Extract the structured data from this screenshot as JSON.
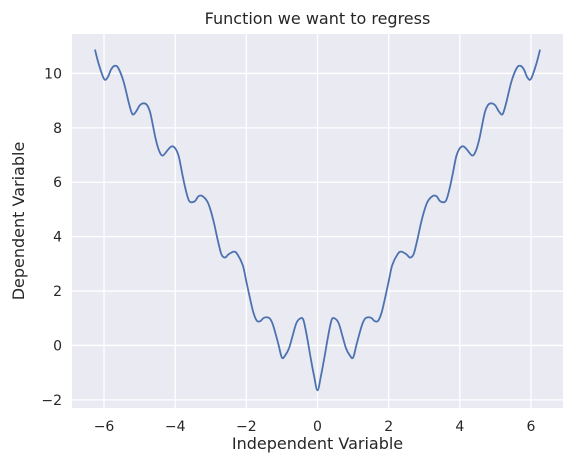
{
  "chart_data": {
    "type": "line",
    "title": "Function we want to regress",
    "xlabel": "Independent Variable",
    "ylabel": "Dependent Variable",
    "xlim": [
      -6.9,
      6.9
    ],
    "ylim": [
      -2.3,
      11.45
    ],
    "xticks": [
      -6,
      -4,
      -2,
      0,
      2,
      4,
      6
    ],
    "xtick_labels": [
      "−6",
      "−4",
      "−2",
      "0",
      "2",
      "4",
      "6"
    ],
    "yticks": [
      -2,
      0,
      2,
      4,
      6,
      8,
      10
    ],
    "ytick_labels": [
      "−2",
      "0",
      "2",
      "4",
      "6",
      "8",
      "10"
    ],
    "grid": true,
    "series": [
      {
        "x": [
          -6.25,
          -6.15,
          -6.0,
          -5.9,
          -5.8,
          -5.7,
          -5.6,
          -5.45,
          -5.3,
          -5.2,
          -5.1,
          -5.0,
          -4.9,
          -4.8,
          -4.7,
          -4.55,
          -4.45,
          -4.35,
          -4.2,
          -4.1,
          -4.0,
          -3.9,
          -3.8,
          -3.7,
          -3.6,
          -3.45,
          -3.35,
          -3.25,
          -3.1,
          -3.0,
          -2.9,
          -2.8,
          -2.7,
          -2.6,
          -2.5,
          -2.35,
          -2.25,
          -2.1,
          -2.0,
          -1.9,
          -1.8,
          -1.7,
          -1.6,
          -1.5,
          -1.35,
          -1.25,
          -1.1,
          -1.0,
          -0.9,
          -0.8,
          -0.7,
          -0.6,
          -0.5,
          -0.4,
          -0.3,
          -0.2,
          -0.1,
          0.0,
          0.1,
          0.2,
          0.3,
          0.4,
          0.5,
          0.6,
          0.7,
          0.8,
          0.9,
          1.0,
          1.1,
          1.25,
          1.35,
          1.5,
          1.6,
          1.7,
          1.8,
          1.9,
          2.0,
          2.1,
          2.25,
          2.35,
          2.5,
          2.6,
          2.7,
          2.8,
          2.9,
          3.0,
          3.1,
          3.25,
          3.35,
          3.45,
          3.6,
          3.7,
          3.8,
          3.9,
          4.0,
          4.1,
          4.2,
          4.35,
          4.45,
          4.55,
          4.7,
          4.8,
          4.9,
          5.0,
          5.1,
          5.2,
          5.3,
          5.45,
          5.6,
          5.7,
          5.8,
          5.9,
          6.0,
          6.15,
          6.25
        ],
        "y": [
          10.85,
          10.35,
          9.8,
          9.85,
          10.15,
          10.28,
          10.2,
          9.7,
          8.9,
          8.5,
          8.6,
          8.82,
          8.9,
          8.85,
          8.55,
          7.6,
          7.15,
          6.98,
          7.2,
          7.32,
          7.25,
          6.95,
          6.3,
          5.7,
          5.3,
          5.3,
          5.48,
          5.5,
          5.3,
          4.95,
          4.45,
          3.85,
          3.35,
          3.23,
          3.35,
          3.45,
          3.35,
          2.95,
          2.35,
          1.75,
          1.2,
          0.9,
          0.9,
          1.02,
          1.0,
          0.75,
          0.05,
          -0.45,
          -0.35,
          -0.1,
          0.35,
          0.8,
          0.98,
          0.95,
          0.35,
          -0.4,
          -1.1,
          -1.65,
          -1.1,
          -0.4,
          0.35,
          0.95,
          0.98,
          0.8,
          0.35,
          -0.1,
          -0.35,
          -0.45,
          0.05,
          0.75,
          1.0,
          1.02,
          0.9,
          0.9,
          1.2,
          1.75,
          2.35,
          2.95,
          3.35,
          3.45,
          3.35,
          3.23,
          3.35,
          3.85,
          4.45,
          4.95,
          5.3,
          5.5,
          5.48,
          5.3,
          5.3,
          5.7,
          6.3,
          6.95,
          7.25,
          7.32,
          7.2,
          6.98,
          7.15,
          7.6,
          8.55,
          8.85,
          8.9,
          8.82,
          8.6,
          8.5,
          8.9,
          9.7,
          10.2,
          10.28,
          10.15,
          9.85,
          9.8,
          10.35,
          10.85
        ]
      }
    ],
    "colors": {
      "line": "#4c72b0",
      "plot_background": "#eaeaf2",
      "grid": "#ffffff",
      "text": "#262626"
    }
  }
}
